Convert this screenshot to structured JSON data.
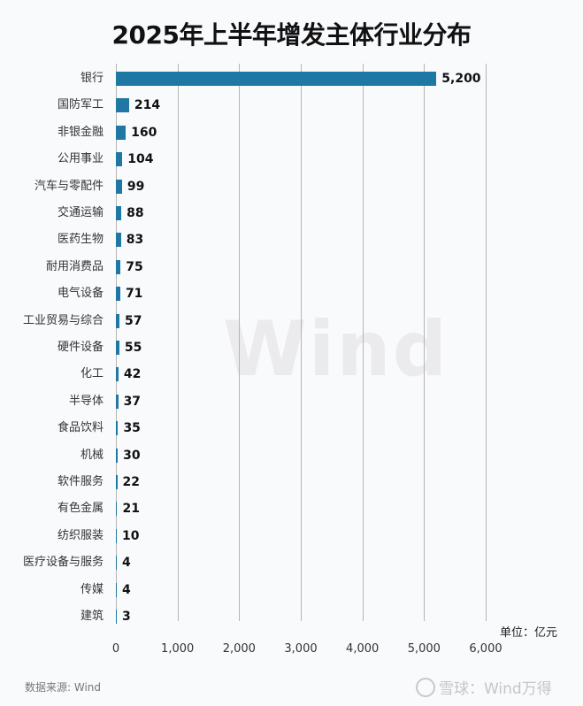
{
  "title": "2025年上半年增发主体行业分布",
  "unit_label": "单位：亿元",
  "source": "数据来源: Wind",
  "brand_watermark": "雪球：Wind万得",
  "background_watermark": "Wind",
  "colors": {
    "bar": "#1f77a4",
    "background": "#f9fafc",
    "grid": "#b5b5b5"
  },
  "chart_data": {
    "type": "bar",
    "orientation": "horizontal",
    "title": "2025年上半年增发主体行业分布",
    "xlabel": "单位：亿元",
    "ylabel": "",
    "xlim": [
      0,
      6000
    ],
    "x_ticks": [
      "0",
      "1,000",
      "2,000",
      "3,000",
      "4,000",
      "5,000",
      "6,000"
    ],
    "grid": "vertical",
    "categories": [
      "银行",
      "国防军工",
      "非银金融",
      "公用事业",
      "汽车与零配件",
      "交通运输",
      "医药生物",
      "耐用消费品",
      "电气设备",
      "工业贸易与综合",
      "硬件设备",
      "化工",
      "半导体",
      "食品饮料",
      "机械",
      "软件服务",
      "有色金属",
      "纺织服装",
      "医疗设备与服务",
      "传媒",
      "建筑"
    ],
    "values": [
      5200,
      214,
      160,
      104,
      99,
      88,
      83,
      75,
      71,
      57,
      55,
      42,
      37,
      35,
      30,
      22,
      21,
      10,
      4,
      4,
      3
    ],
    "value_labels": [
      "5,200",
      "214",
      "160",
      "104",
      "99",
      "88",
      "83",
      "75",
      "71",
      "57",
      "55",
      "42",
      "37",
      "35",
      "30",
      "22",
      "21",
      "10",
      "4",
      "4",
      "3"
    ]
  }
}
